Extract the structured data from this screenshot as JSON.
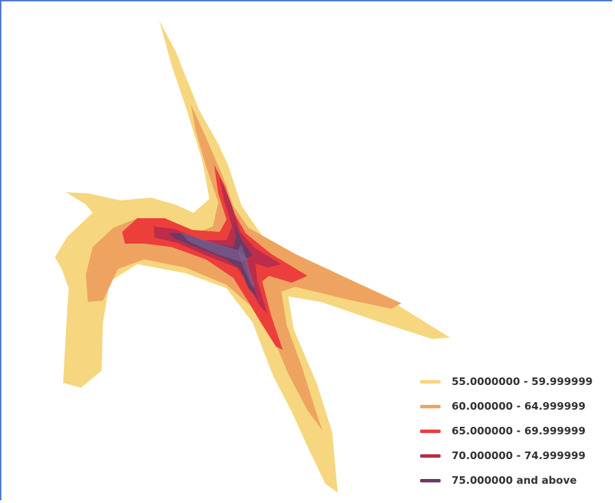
{
  "legend": {
    "items": [
      {
        "label": "55.0000000 - 59.999999",
        "color": "#f6d77f"
      },
      {
        "label": "60.000000 - 64.999999",
        "color": "#eea460"
      },
      {
        "label": "65.000000 - 69.999999",
        "color": "#ec3e3b"
      },
      {
        "label": "70.000000 - 74.999999",
        "color": "#bb2d4a"
      },
      {
        "label": "75.000000 and above",
        "color": "#6b3a66"
      }
    ]
  }
}
